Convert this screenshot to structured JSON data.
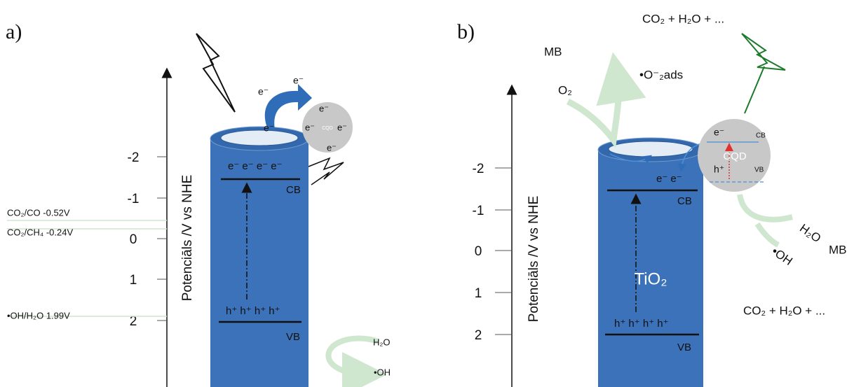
{
  "panels": [
    {
      "label": "a)",
      "axis": {
        "label": "Potenciāls /V vs NHE",
        "ticks": [
          -2,
          -1,
          0,
          1,
          2
        ]
      },
      "references": [
        "CO₂/CO -0.52V",
        "CO₂/CH₄ -0.24V",
        "•OH/H₂O 1.99V"
      ],
      "cylinder": {
        "electrons": "e⁻ e⁻ e⁻ e⁻",
        "cb": "CB",
        "holes": "h⁺ h⁺ h⁺ h⁺",
        "vb": "VB"
      },
      "transfer_electrons": [
        "e⁻",
        "e⁻",
        "e⁻"
      ],
      "cqd": {
        "label": "CQD",
        "electrons": [
          "e⁻",
          "e⁻",
          "e⁻",
          "e⁻"
        ]
      },
      "products": [
        "H₂O",
        "•OH"
      ]
    },
    {
      "label": "b)",
      "axis": {
        "label": "Potenciāls /V vs NHE",
        "ticks": [
          -2,
          -1,
          0,
          1,
          2
        ]
      },
      "cylinder": {
        "electrons": "e⁻ e⁻",
        "cb": "CB",
        "holes": "h⁺ h⁺ h⁺ h⁺",
        "vb": "VB",
        "material": "TiO₂"
      },
      "cqd": {
        "label": "CQD",
        "electron": "e⁻",
        "cb": "CB",
        "hole": "h⁺",
        "vb": "VB"
      },
      "species": {
        "top_products": "CO₂ + H₂O + ...",
        "mb_top": "MB",
        "oxygen": "O₂",
        "superoxide": "•O⁻₂ads",
        "water": "H₂O",
        "hydroxyl": "•OH",
        "mb_right": "MB",
        "right_products": "CO₂ + H₂O + ..."
      }
    }
  ]
}
